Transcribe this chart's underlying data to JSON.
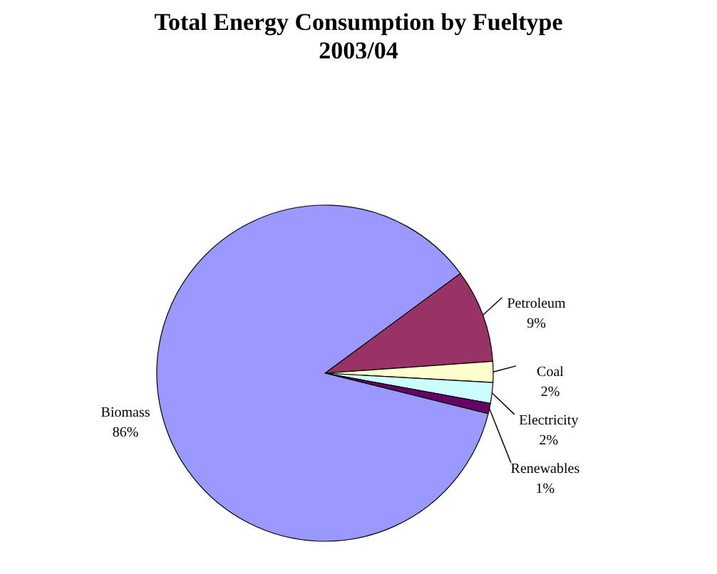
{
  "chart_data": {
    "type": "pie",
    "title": "Total Energy Consumption by Fueltype",
    "subtitle": "2003/04",
    "categories": [
      "Petroleum",
      "Coal",
      "Electricity",
      "Renewables",
      "Biomass"
    ],
    "values": [
      9,
      2,
      2,
      1,
      86
    ],
    "colors": [
      "#993366",
      "#ffffcc",
      "#ccffff",
      "#660066",
      "#9999ff"
    ],
    "value_labels": [
      "9%",
      "2%",
      "2%",
      "1%",
      "86%"
    ]
  }
}
